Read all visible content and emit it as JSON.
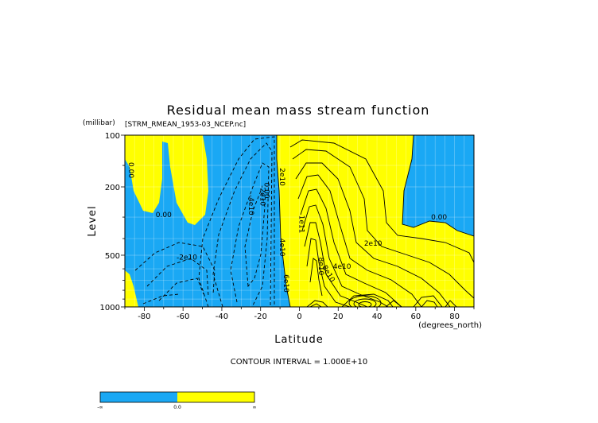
{
  "chart_data": {
    "type": "contour",
    "title": "Residual mean mass stream function",
    "source_label": "[STRM_RMEAN_1953-03_NCEP.nc]",
    "y_units_label": "(millibar)",
    "x_units_label": "(degrees_north)",
    "xlabel": "Latitude",
    "ylabel": "Level",
    "xlim": [
      -90,
      90
    ],
    "ylim": [
      100,
      1000
    ],
    "y_scale": "log",
    "y_inverted": true,
    "x_ticks": [
      -80,
      -60,
      -40,
      -20,
      0,
      20,
      40,
      60,
      80
    ],
    "x_tick_labels": [
      "-80",
      "-60",
      "-40",
      "-20",
      "0",
      "20",
      "40",
      "60",
      "80"
    ],
    "y_ticks": [
      100,
      200,
      500,
      1000
    ],
    "y_tick_labels": [
      "100",
      "200",
      "500",
      "1000"
    ],
    "contour_interval_text": "CONTOUR INTERVAL = 1.000E+10",
    "fill_colors": {
      "negative": "#1aa8f4",
      "positive": "#ffff00"
    },
    "grid": true,
    "contour_labels": [
      {
        "text": "0.00",
        "lat": -88,
        "level": 160,
        "rotate": 90
      },
      {
        "text": "0.00",
        "lat": -70,
        "level": 300
      },
      {
        "text": "-2e10",
        "lat": -58,
        "level": 530
      },
      {
        "text": "-4e10",
        "lat": -26,
        "level": 255,
        "rotate": 90
      },
      {
        "text": "-2e10",
        "lat": -20,
        "level": 225,
        "rotate": 90
      },
      {
        "text": "0.00",
        "lat": -18,
        "level": 210,
        "rotate": 90
      },
      {
        "text": "2e10",
        "lat": -10,
        "level": 175,
        "rotate": 90
      },
      {
        "text": "4e10",
        "lat": -10,
        "level": 450,
        "rotate": 90
      },
      {
        "text": "6e10",
        "lat": -8,
        "level": 730,
        "rotate": 90
      },
      {
        "text": "1e11",
        "lat": 0,
        "level": 330,
        "rotate": 90
      },
      {
        "text": "8e10",
        "lat": 10,
        "level": 580,
        "rotate": 90
      },
      {
        "text": "8e10",
        "lat": 14,
        "level": 650,
        "rotate": 60
      },
      {
        "text": "4e10",
        "lat": 22,
        "level": 600
      },
      {
        "text": "2e10",
        "lat": 38,
        "level": 440
      },
      {
        "text": "0.00",
        "lat": 72,
        "level": 310
      }
    ],
    "colorbar": {
      "labels": [
        "-∞",
        "0.0",
        "∞"
      ],
      "colors": [
        "#1aa8f4",
        "#ffff00"
      ]
    }
  }
}
